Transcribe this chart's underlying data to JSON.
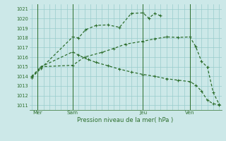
{
  "title": "Pression niveau de la mer( hPa )",
  "ylabel_values": [
    1011,
    1012,
    1013,
    1014,
    1015,
    1016,
    1017,
    1018,
    1019,
    1020,
    1021
  ],
  "ylim": [
    1010.5,
    1021.5
  ],
  "background_color": "#cce8e8",
  "grid_color": "#99cccc",
  "line_color": "#2d6e2d",
  "day_labels": [
    "Mer",
    "Sam",
    "Jeu",
    "Ven"
  ],
  "day_positions": [
    0.5,
    3.5,
    9.5,
    13.5
  ],
  "vline_positions": [
    0.5,
    3.5,
    9.5,
    13.5
  ],
  "xlim": [
    -0.2,
    16.2
  ],
  "line1_x": [
    0.0,
    0.8,
    3.5,
    4.0,
    4.6,
    5.5,
    6.5,
    7.5,
    8.5,
    9.5,
    10.0,
    10.5,
    11.0
  ],
  "line1_y": [
    1013.85,
    1014.85,
    1018.1,
    1018.0,
    1018.85,
    1019.3,
    1019.35,
    1019.1,
    1020.55,
    1020.6,
    1020.05,
    1020.55,
    1020.3
  ],
  "line2_x": [
    0.0,
    0.8,
    3.5,
    4.5,
    6.0,
    7.0,
    8.0,
    9.5,
    10.5,
    11.5,
    12.5,
    13.5,
    14.0,
    14.5,
    15.0,
    15.5,
    16.0
  ],
  "line2_y": [
    1013.9,
    1015.0,
    1015.15,
    1016.0,
    1016.5,
    1016.9,
    1017.35,
    1017.65,
    1017.9,
    1018.1,
    1018.05,
    1018.1,
    1017.1,
    1015.55,
    1014.95,
    1012.3,
    1011.1
  ],
  "line3_x": [
    0.0,
    0.8,
    3.5,
    4.0,
    4.8,
    5.5,
    6.5,
    7.5,
    8.5,
    9.5,
    10.5,
    11.5,
    12.5,
    13.5,
    14.0,
    14.5,
    15.0,
    15.5,
    16.0
  ],
  "line3_y": [
    1014.0,
    1015.0,
    1016.55,
    1016.2,
    1015.75,
    1015.45,
    1015.1,
    1014.75,
    1014.45,
    1014.2,
    1014.0,
    1013.75,
    1013.6,
    1013.45,
    1013.1,
    1012.45,
    1011.5,
    1011.15,
    1011.05
  ]
}
